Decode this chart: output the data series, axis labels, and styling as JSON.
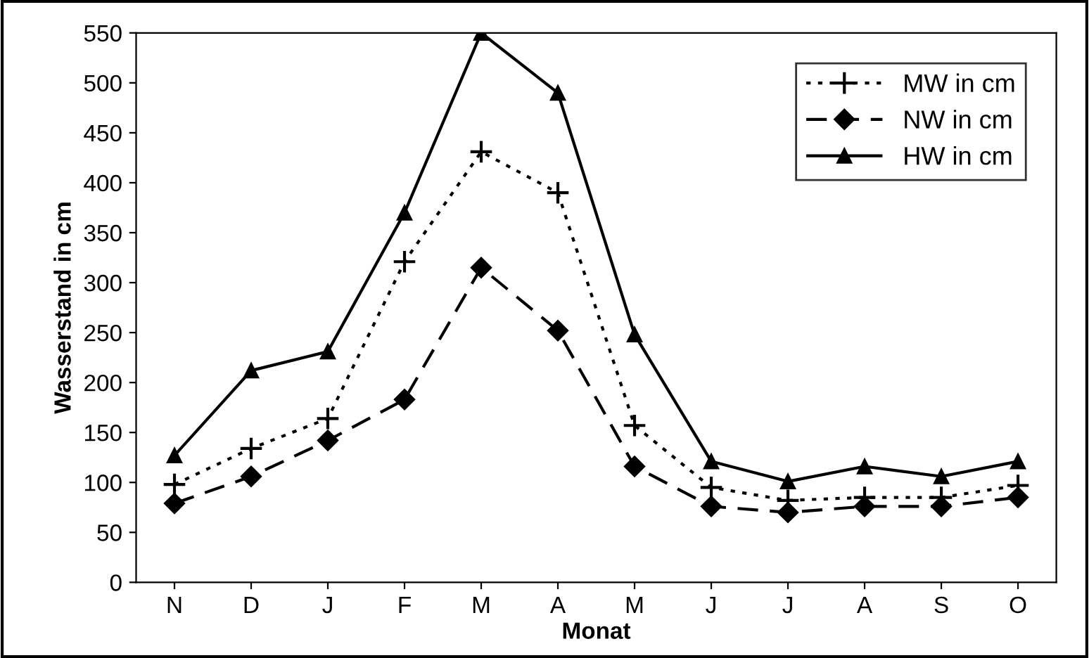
{
  "chart_data": {
    "type": "line",
    "xlabel": "Monat",
    "ylabel": "Wasserstand in cm",
    "categories": [
      "N",
      "D",
      "J",
      "F",
      "M",
      "A",
      "M",
      "J",
      "J",
      "A",
      "S",
      "O"
    ],
    "ylim": [
      0,
      550
    ],
    "yticks": [
      0,
      50,
      100,
      150,
      200,
      250,
      300,
      350,
      400,
      450,
      500,
      550
    ],
    "grid": false,
    "legend": "top right",
    "series": [
      {
        "name": "MW in cm",
        "color": "#000000",
        "marker": "cross",
        "line_style": "dotted",
        "values": [
          98,
          134,
          164,
          321,
          431,
          390,
          157,
          95,
          82,
          85,
          85,
          97
        ]
      },
      {
        "name": "NW in cm",
        "color": "#000000",
        "marker": "diamond",
        "line_style": "dashed",
        "values": [
          79,
          106,
          142,
          183,
          315,
          252,
          116,
          76,
          70,
          76,
          76,
          85
        ]
      },
      {
        "name": "HW in cm",
        "color": "#000000",
        "marker": "triangle",
        "line_style": "solid",
        "values": [
          127,
          212,
          231,
          370,
          550,
          490,
          248,
          121,
          101,
          116,
          106,
          121
        ]
      }
    ]
  }
}
